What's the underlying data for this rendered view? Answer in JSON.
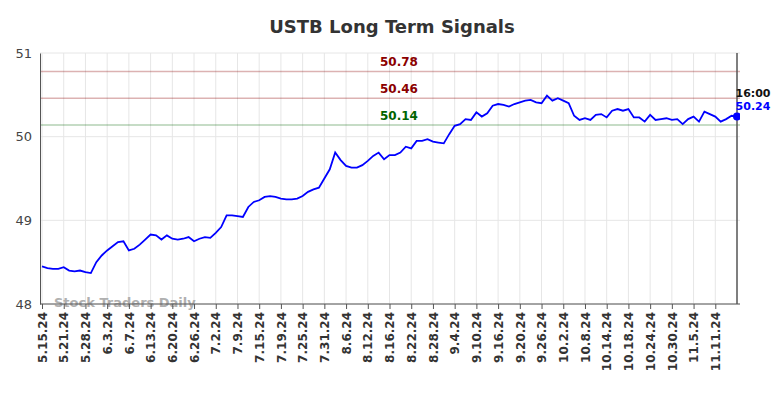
{
  "chart_data": {
    "type": "line",
    "title": "USTB Long Term Signals",
    "categories": [
      "5.15.24",
      null,
      null,
      null,
      "5.21.24",
      null,
      null,
      null,
      "5.28.24",
      null,
      null,
      null,
      "6.3.24",
      null,
      null,
      null,
      "6.7.24",
      null,
      null,
      null,
      "6.13.24",
      null,
      null,
      null,
      "6.20.24",
      null,
      null,
      null,
      "6.26.24",
      null,
      null,
      null,
      "7.2.24",
      null,
      null,
      null,
      "7.9.24",
      null,
      null,
      null,
      "7.15.24",
      null,
      null,
      null,
      "7.19.24",
      null,
      null,
      null,
      "7.25.24",
      null,
      null,
      null,
      "7.31.24",
      null,
      null,
      null,
      "8.6.24",
      null,
      null,
      null,
      "8.12.24",
      null,
      null,
      null,
      "8.16.24",
      null,
      null,
      null,
      "8.22.24",
      null,
      null,
      null,
      "8.28.24",
      null,
      null,
      null,
      "9.4.24",
      null,
      null,
      null,
      "9.10.24",
      null,
      null,
      null,
      "9.16.24",
      null,
      null,
      null,
      "9.20.24",
      null,
      null,
      null,
      "9.26.24",
      null,
      null,
      null,
      "10.2.24",
      null,
      null,
      null,
      "10.8.24",
      null,
      null,
      null,
      "10.14.24",
      null,
      null,
      null,
      "10.18.24",
      null,
      null,
      null,
      "10.24.24",
      null,
      null,
      null,
      "10.30.24",
      null,
      null,
      null,
      "11.5.24",
      null,
      null,
      null,
      "11.11.24",
      null,
      null,
      null,
      null
    ],
    "values": [
      48.45,
      48.43,
      48.42,
      48.42,
      48.44,
      48.4,
      48.39,
      48.4,
      48.38,
      48.37,
      48.5,
      48.58,
      48.64,
      48.69,
      48.74,
      48.75,
      48.64,
      48.66,
      48.71,
      48.77,
      48.83,
      48.82,
      48.77,
      48.82,
      48.78,
      48.77,
      48.78,
      48.8,
      48.75,
      48.78,
      48.8,
      48.79,
      48.85,
      48.92,
      49.06,
      49.06,
      49.05,
      49.04,
      49.16,
      49.22,
      49.24,
      49.28,
      49.29,
      49.28,
      49.26,
      49.25,
      49.25,
      49.26,
      49.29,
      49.34,
      49.37,
      49.39,
      49.5,
      49.61,
      49.81,
      49.72,
      49.65,
      49.63,
      49.63,
      49.66,
      49.71,
      49.77,
      49.81,
      49.73,
      49.78,
      49.78,
      49.81,
      49.88,
      49.86,
      49.95,
      49.95,
      49.97,
      49.94,
      49.93,
      49.92,
      50.03,
      50.13,
      50.15,
      50.21,
      50.2,
      50.29,
      50.24,
      50.28,
      50.37,
      50.39,
      50.38,
      50.36,
      50.39,
      50.41,
      50.43,
      50.44,
      50.41,
      50.4,
      50.49,
      50.43,
      50.46,
      50.43,
      50.4,
      50.25,
      50.2,
      50.22,
      50.2,
      50.26,
      50.27,
      50.23,
      50.31,
      50.33,
      50.31,
      50.33,
      50.23,
      50.23,
      50.18,
      50.26,
      50.2,
      50.21,
      50.22,
      50.2,
      50.21,
      50.15,
      50.21,
      50.24,
      50.18,
      50.3,
      50.27,
      50.24,
      50.18,
      50.21,
      50.25,
      50.24
    ],
    "color": "#0000ff",
    "ylim": [
      48,
      51
    ],
    "yticks": [
      48,
      49,
      50,
      51
    ],
    "grid": true,
    "marker": "last",
    "levels": [
      {
        "value": 50.78,
        "color": "#8b0000"
      },
      {
        "value": 50.46,
        "color": "#8b0000"
      },
      {
        "value": 50.14,
        "color": "#006400"
      }
    ],
    "time_label": "16:00",
    "watermark": "Stock Traders Daily"
  }
}
